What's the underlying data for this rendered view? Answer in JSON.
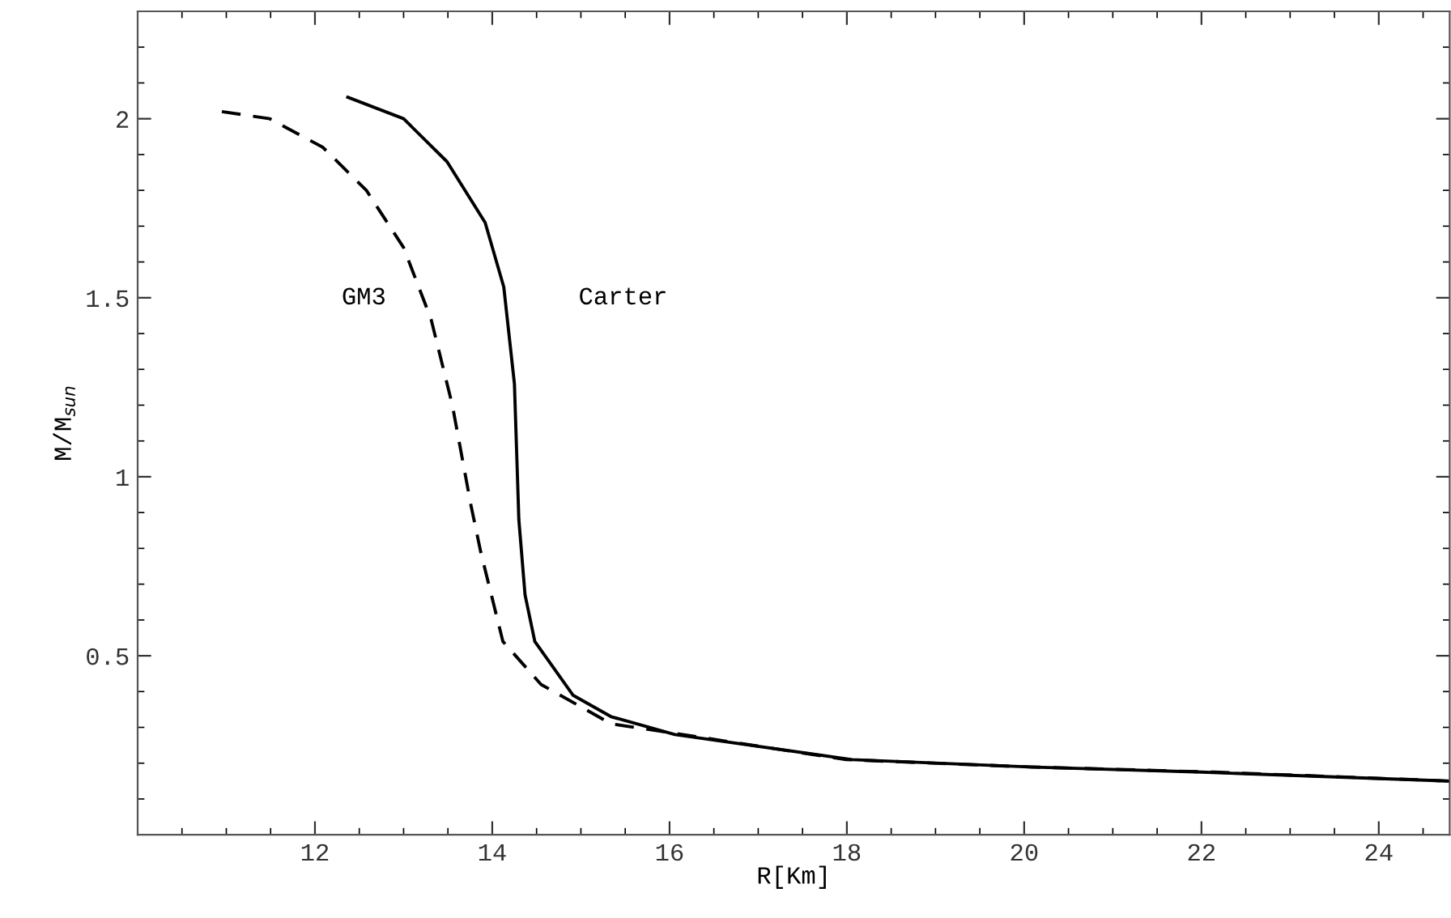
{
  "chart_data": {
    "type": "line",
    "xlabel": "R[Km]",
    "ylabel": "M/M$_{sun}$",
    "xlim": [
      10,
      24.8
    ],
    "ylim": [
      0,
      2.3
    ],
    "xticks": [
      {
        "value": 10.5,
        "label": null
      },
      {
        "value": 11,
        "label": null
      },
      {
        "value": 11.5,
        "label": null
      },
      12,
      {
        "value": 12.5,
        "label": null
      },
      {
        "value": 13,
        "label": null
      },
      {
        "value": 13.5,
        "label": null
      },
      14,
      {
        "value": 14.5,
        "label": null
      },
      {
        "value": 15,
        "label": null
      },
      {
        "value": 15.5,
        "label": null
      },
      16,
      {
        "value": 16.5,
        "label": null
      },
      {
        "value": 17,
        "label": null
      },
      {
        "value": 17.5,
        "label": null
      },
      18,
      {
        "value": 18.5,
        "label": null
      },
      {
        "value": 19,
        "label": null
      },
      {
        "value": 19.5,
        "label": null
      },
      20,
      {
        "value": 20.5,
        "label": null
      },
      {
        "value": 21,
        "label": null
      },
      {
        "value": 21.5,
        "label": null
      },
      22,
      {
        "value": 22.5,
        "label": null
      },
      {
        "value": 23,
        "label": null
      },
      {
        "value": 23.5,
        "label": null
      },
      24,
      {
        "value": 24.5,
        "label": null
      }
    ],
    "yticks": [
      {
        "value": 0.1,
        "label": null
      },
      {
        "value": 0.2,
        "label": null
      },
      {
        "value": 0.3,
        "label": null
      },
      {
        "value": 0.4,
        "label": null
      },
      0.5,
      {
        "value": 0.6,
        "label": null
      },
      {
        "value": 0.7,
        "label": null
      },
      {
        "value": 0.8,
        "label": null
      },
      {
        "value": 0.9,
        "label": null
      },
      1,
      {
        "value": 1.1,
        "label": null
      },
      {
        "value": 1.2,
        "label": null
      },
      {
        "value": 1.3,
        "label": null
      },
      {
        "value": 1.4,
        "label": null
      },
      1.5,
      {
        "value": 1.6,
        "label": null
      },
      {
        "value": 1.7,
        "label": null
      },
      {
        "value": 1.8,
        "label": null
      },
      {
        "value": 1.9,
        "label": null
      },
      2,
      {
        "value": 2.1,
        "label": null
      },
      {
        "value": 2.2,
        "label": null
      }
    ],
    "grid": false,
    "legend": false,
    "marker": "none",
    "series": [
      {
        "name": "GM3",
        "color": "#000000",
        "line_style": "dashed",
        "x": [
          10.95,
          11.49,
          12.09,
          12.58,
          13.0,
          13.31,
          13.55,
          13.76,
          13.87,
          14.12,
          14.55,
          15.34,
          16.41,
          17.99,
          19.99,
          22.14,
          24.5,
          24.8
        ],
        "values": [
          2.02,
          2.0,
          1.92,
          1.8,
          1.64,
          1.44,
          1.2,
          0.92,
          0.79,
          0.54,
          0.42,
          0.31,
          0.27,
          0.21,
          0.19,
          0.175,
          0.153,
          0.15
        ]
      },
      {
        "name": "Carter",
        "color": "#000000",
        "line_style": "solid",
        "x": [
          12.37,
          13.0,
          13.49,
          13.92,
          14.13,
          14.25,
          14.3,
          14.37,
          14.48,
          14.91,
          15.34,
          16.06,
          18.06,
          20.0,
          22.0,
          24.8
        ],
        "values": [
          2.06,
          2.0,
          1.88,
          1.71,
          1.53,
          1.26,
          0.88,
          0.67,
          0.54,
          0.39,
          0.33,
          0.28,
          0.21,
          0.19,
          0.175,
          0.15
        ]
      }
    ]
  }
}
